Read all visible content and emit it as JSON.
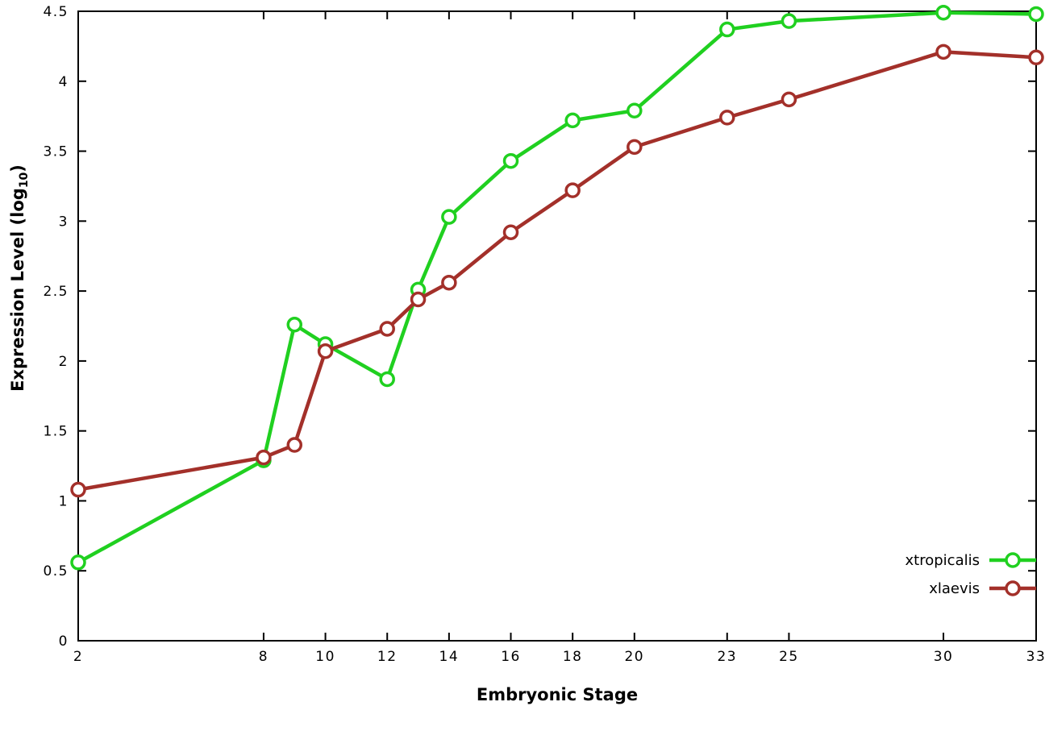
{
  "chart_data": {
    "type": "line",
    "title": "",
    "xlabel": "Embryonic Stage",
    "ylabel": "Expression Level (log10)",
    "ylabel_parts": {
      "main": "Expression Level (log",
      "sub": "10",
      "end": ")"
    },
    "xlim": [
      2,
      33
    ],
    "ylim": [
      0,
      4.5
    ],
    "x_ticks": [
      2,
      8,
      10,
      12,
      14,
      16,
      18,
      20,
      23,
      25,
      30,
      33
    ],
    "y_ticks": [
      0,
      0.5,
      1,
      1.5,
      2,
      2.5,
      3,
      3.5,
      4,
      4.5
    ],
    "grid": false,
    "legend_position": "bottom-right",
    "x": [
      2,
      8,
      9,
      10,
      12,
      13,
      14,
      16,
      18,
      20,
      23,
      25,
      30,
      33
    ],
    "series": [
      {
        "name": "xtropicalis",
        "color": "#20d020",
        "values": [
          0.56,
          1.29,
          2.26,
          2.12,
          1.87,
          2.51,
          3.03,
          3.43,
          3.72,
          3.79,
          4.37,
          4.43,
          4.49,
          4.48
        ]
      },
      {
        "name": "xlaevis",
        "color": "#a3302a",
        "values": [
          1.08,
          1.31,
          1.4,
          2.07,
          2.23,
          2.44,
          2.56,
          2.92,
          3.22,
          3.53,
          3.74,
          3.87,
          4.21,
          4.17
        ]
      }
    ],
    "axis_color": "#000000",
    "background_color": "#ffffff"
  }
}
